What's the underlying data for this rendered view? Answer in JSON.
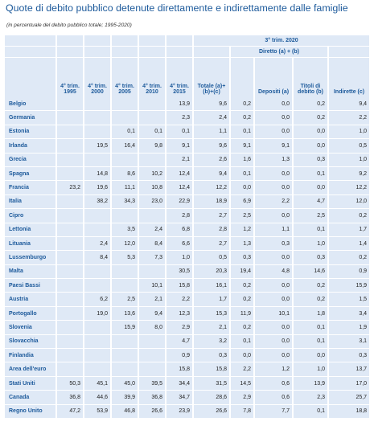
{
  "title": "Quote di debito pubblico detenute direttamente e indirettamente dalle famiglie",
  "subtitle": "(in percentuale del debito pubblico totale; 1995-2020)",
  "header": {
    "group_label": "3° trim. 2020",
    "subgroup_label": "Diretto (a) + (b)",
    "columns": [
      "4° trim. 1995",
      "4° trim. 2000",
      "4° trim. 2005",
      "4° trim. 2010",
      "4° trim. 2015",
      "Totale (a)+(b)+(c)",
      "",
      "Depositi (a)",
      "Titoli di debito (b)",
      "Indirette (c)"
    ]
  },
  "rows": [
    {
      "country": "Belgio",
      "values": [
        "",
        "",
        "",
        "",
        "13,9",
        "9,6",
        "0,2",
        "0,0",
        "0,2",
        "9,4"
      ]
    },
    {
      "country": "Germania",
      "values": [
        "",
        "",
        "",
        "",
        "2,3",
        "2,4",
        "0,2",
        "0,0",
        "0,2",
        "2,2"
      ]
    },
    {
      "country": "Estonia",
      "values": [
        "",
        "",
        "0,1",
        "0,1",
        "0,1",
        "1,1",
        "0,1",
        "0,0",
        "0,0",
        "1,0"
      ]
    },
    {
      "country": "Irlanda",
      "values": [
        "",
        "19,5",
        "16,4",
        "9,8",
        "9,1",
        "9,6",
        "9,1",
        "9,1",
        "0,0",
        "0,5"
      ]
    },
    {
      "country": "Grecia",
      "values": [
        "",
        "",
        "",
        "",
        "2,1",
        "2,6",
        "1,6",
        "1,3",
        "0,3",
        "1,0"
      ]
    },
    {
      "country": "Spagna",
      "values": [
        "",
        "14,8",
        "8,6",
        "10,2",
        "12,4",
        "9,4",
        "0,1",
        "0,0",
        "0,1",
        "9,2"
      ]
    },
    {
      "country": "Francia",
      "values": [
        "23,2",
        "19,6",
        "11,1",
        "10,8",
        "12,4",
        "12,2",
        "0,0",
        "0,0",
        "0,0",
        "12,2"
      ]
    },
    {
      "country": "Italia",
      "values": [
        "",
        "38,2",
        "34,3",
        "23,0",
        "22,9",
        "18,9",
        "6,9",
        "2,2",
        "4,7",
        "12,0"
      ]
    },
    {
      "country": "Cipro",
      "values": [
        "",
        "",
        "",
        "",
        "2,8",
        "2,7",
        "2,5",
        "0,0",
        "2,5",
        "0,2"
      ]
    },
    {
      "country": "Lettonia",
      "values": [
        "",
        "",
        "3,5",
        "2,4",
        "6,8",
        "2,8",
        "1,2",
        "1,1",
        "0,1",
        "1,7"
      ]
    },
    {
      "country": "Lituania",
      "values": [
        "",
        "2,4",
        "12,0",
        "8,4",
        "6,6",
        "2,7",
        "1,3",
        "0,3",
        "1,0",
        "1,4"
      ]
    },
    {
      "country": "Lussemburgo",
      "values": [
        "",
        "8,4",
        "5,3",
        "7,3",
        "1,0",
        "0,5",
        "0,3",
        "0,0",
        "0,3",
        "0,2"
      ]
    },
    {
      "country": "Malta",
      "values": [
        "",
        "",
        "",
        "",
        "30,5",
        "20,3",
        "19,4",
        "4,8",
        "14,6",
        "0,9"
      ]
    },
    {
      "country": "Paesi Bassi",
      "values": [
        "",
        "",
        "",
        "10,1",
        "15,8",
        "16,1",
        "0,2",
        "0,0",
        "0,2",
        "15,9"
      ]
    },
    {
      "country": "Austria",
      "values": [
        "",
        "6,2",
        "2,5",
        "2,1",
        "2,2",
        "1,7",
        "0,2",
        "0,0",
        "0,2",
        "1,5"
      ]
    },
    {
      "country": "Portogallo",
      "values": [
        "",
        "19,0",
        "13,6",
        "9,4",
        "12,3",
        "15,3",
        "11,9",
        "10,1",
        "1,8",
        "3,4"
      ]
    },
    {
      "country": "Slovenia",
      "values": [
        "",
        "",
        "15,9",
        "8,0",
        "2,9",
        "2,1",
        "0,2",
        "0,0",
        "0,1",
        "1,9"
      ]
    },
    {
      "country": "Slovacchia",
      "values": [
        "",
        "",
        "",
        "",
        "4,7",
        "3,2",
        "0,1",
        "0,0",
        "0,1",
        "3,1"
      ]
    },
    {
      "country": "Finlandia",
      "values": [
        "",
        "",
        "",
        "",
        "0,9",
        "0,3",
        "0,0",
        "0,0",
        "0,0",
        "0,3"
      ]
    },
    {
      "country": "Area dell'euro",
      "values": [
        "",
        "",
        "",
        "",
        "15,8",
        "15,8",
        "2,2",
        "1,2",
        "1,0",
        "13,7"
      ]
    },
    {
      "country": "Stati Uniti",
      "values": [
        "50,3",
        "45,1",
        "45,0",
        "39,5",
        "34,4",
        "31,5",
        "14,5",
        "0,6",
        "13,9",
        "17,0"
      ]
    },
    {
      "country": "Canada",
      "values": [
        "36,8",
        "44,6",
        "39,9",
        "36,8",
        "34,7",
        "28,6",
        "2,9",
        "0,6",
        "2,3",
        "25,7"
      ]
    },
    {
      "country": "Regno Unito",
      "values": [
        "47,2",
        "53,9",
        "46,8",
        "26,6",
        "23,9",
        "26,6",
        "7,8",
        "7,7",
        "0,1",
        "18,8"
      ]
    }
  ]
}
